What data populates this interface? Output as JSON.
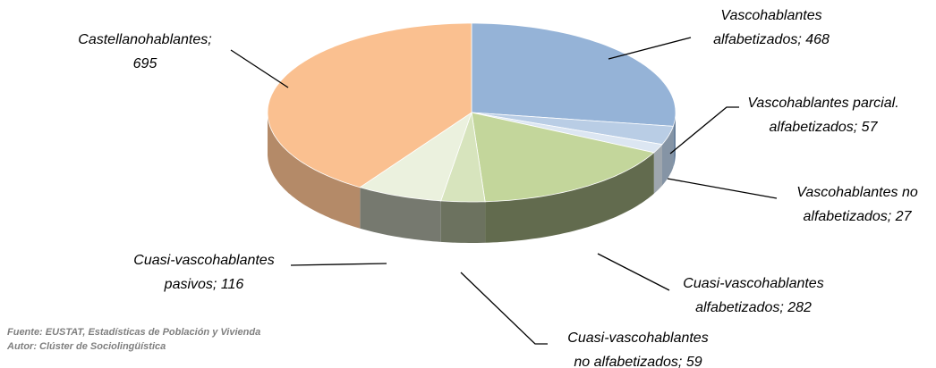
{
  "chart_data": {
    "type": "pie3d",
    "values": [
      468,
      57,
      27,
      282,
      59,
      116,
      695
    ],
    "value_labels": [
      [
        "Vascohablantes",
        "alfabetizados; 468"
      ],
      [
        "Vascohablantes parcial.",
        "alfabetizados; 57"
      ],
      [
        "Vascohablantes no",
        "alfabetizados; 27"
      ],
      [
        "Cuasi-vascohablantes",
        "alfabetizados; 282"
      ],
      [
        "Cuasi-vascohablantes",
        "no alfabetizados; 59"
      ],
      [
        "Cuasi-vascohablantes",
        "pasivos; 116"
      ],
      [
        "Castellanohablantes;",
        "695"
      ]
    ],
    "colors": [
      "#95b3d7",
      "#b9cde5",
      "#dce6f2",
      "#c3d69b",
      "#d7e4bd",
      "#ebf1de",
      "#fac090"
    ],
    "notes": [
      "Fuente: EUSTAT, Estadísticas de Población y Vivienda",
      "Autor: Clúster de Sociolingüística"
    ]
  }
}
